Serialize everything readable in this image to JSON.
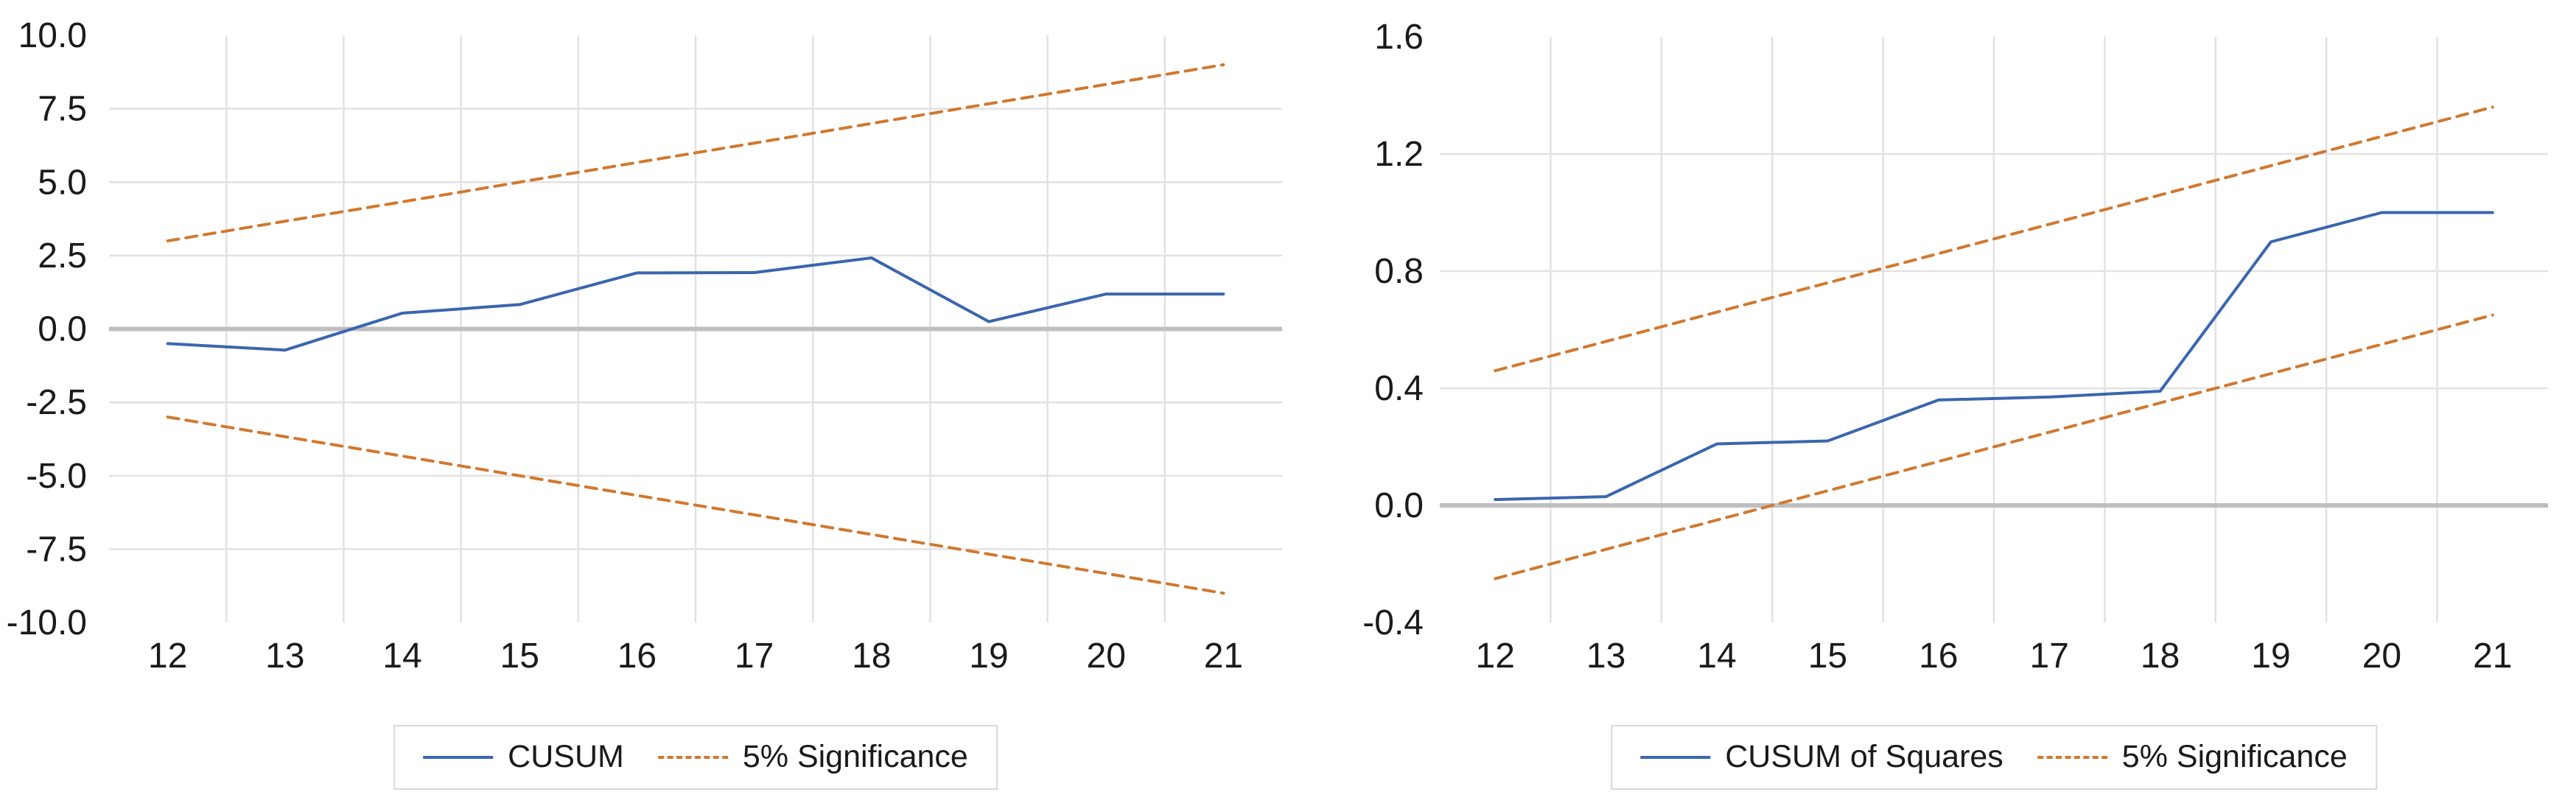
{
  "page": {
    "background": "#ffffff"
  },
  "colors": {
    "series_blue": "#3A66AE",
    "series_orange": "#D1782F",
    "zero_line": "#BFBFBF",
    "gridline": "#E2E2E2",
    "axis_text": "#1A1A1A",
    "legend_border": "#D9D9D9"
  },
  "chart_data": [
    {
      "type": "line",
      "title": "",
      "xlabel": "",
      "ylabel": "",
      "x_categories": [
        12,
        13,
        14,
        15,
        16,
        17,
        18,
        19,
        20,
        21
      ],
      "x_tick_labels": [
        "12",
        "13",
        "14",
        "15",
        "16",
        "17",
        "18",
        "19",
        "20",
        "21"
      ],
      "xlim": [
        11.5,
        21.5
      ],
      "ylim": [
        -10,
        10
      ],
      "y_tick_labels": [
        "10.0",
        "7.5",
        "5.0",
        "2.5",
        "0.0",
        "-2.5",
        "-5.0",
        "-7.5",
        "-10.0"
      ],
      "y_label_values": [
        10,
        7.5,
        5,
        2.5,
        0,
        -2.5,
        -5,
        -7.5,
        -10
      ],
      "grid": {
        "h_values": [
          7.5,
          5,
          2.5,
          -2.5,
          -5,
          -7.5
        ],
        "v_values": [
          12.5,
          13.5,
          14.5,
          15.5,
          16.5,
          17.5,
          18.5,
          19.5,
          20.5
        ],
        "zero_line": 0
      },
      "series": [
        {
          "name": "CUSUM",
          "color": "series_blue",
          "dash": false,
          "values": [
            -0.5,
            -0.72,
            0.54,
            0.83,
            1.91,
            1.92,
            2.42,
            0.25,
            1.19,
            1.19
          ]
        },
        {
          "name": "5% Significance (upper)",
          "color": "series_orange",
          "dash": true,
          "values": [
            3.0,
            3.67,
            4.33,
            5.0,
            5.67,
            6.33,
            7.0,
            7.67,
            8.33,
            9.0
          ]
        },
        {
          "name": "5% Significance (lower)",
          "color": "series_orange",
          "dash": true,
          "values": [
            -3.0,
            -3.67,
            -4.33,
            -5.0,
            -5.67,
            -6.33,
            -7.0,
            -7.67,
            -8.33,
            -9.0
          ]
        }
      ],
      "legend": {
        "position": "bottom-center",
        "items": [
          {
            "label": "CUSUM",
            "color": "series_blue",
            "dash": false
          },
          {
            "label": "5% Significance",
            "color": "series_orange",
            "dash": true
          }
        ]
      }
    },
    {
      "type": "line",
      "title": "",
      "xlabel": "",
      "ylabel": "",
      "x_categories": [
        12,
        13,
        14,
        15,
        16,
        17,
        18,
        19,
        20,
        21
      ],
      "x_tick_labels": [
        "12",
        "13",
        "14",
        "15",
        "16",
        "17",
        "18",
        "19",
        "20",
        "21"
      ],
      "xlim": [
        11.5,
        21.5
      ],
      "ylim": [
        -0.4,
        1.6
      ],
      "y_tick_labels": [
        "1.6",
        "1.2",
        "0.8",
        "0.4",
        "0.0",
        "-0.4"
      ],
      "y_label_values": [
        1.6,
        1.2,
        0.8,
        0.4,
        0,
        -0.4
      ],
      "grid": {
        "h_values": [
          1.2,
          0.8,
          0.4
        ],
        "v_values": [
          12.5,
          13.5,
          14.5,
          15.5,
          16.5,
          17.5,
          18.5,
          19.5,
          20.5
        ],
        "zero_line": 0
      },
      "series": [
        {
          "name": "CUSUM of Squares",
          "color": "series_blue",
          "dash": false,
          "values": [
            0.02,
            0.03,
            0.21,
            0.22,
            0.36,
            0.37,
            0.39,
            0.9,
            1.0,
            1.0
          ]
        },
        {
          "name": "5% Significance (upper)",
          "color": "series_orange",
          "dash": true,
          "values": [
            0.46,
            0.56,
            0.66,
            0.76,
            0.86,
            0.96,
            1.06,
            1.16,
            1.26,
            1.36
          ]
        },
        {
          "name": "5% Significance (lower)",
          "color": "series_orange",
          "dash": true,
          "values": [
            -0.25,
            -0.15,
            -0.05,
            0.05,
            0.15,
            0.25,
            0.35,
            0.45,
            0.55,
            0.65
          ]
        }
      ],
      "legend": {
        "position": "bottom-center",
        "items": [
          {
            "label": "CUSUM of Squares",
            "color": "series_blue",
            "dash": false
          },
          {
            "label": "5% Significance",
            "color": "series_orange",
            "dash": true
          }
        ]
      }
    }
  ]
}
